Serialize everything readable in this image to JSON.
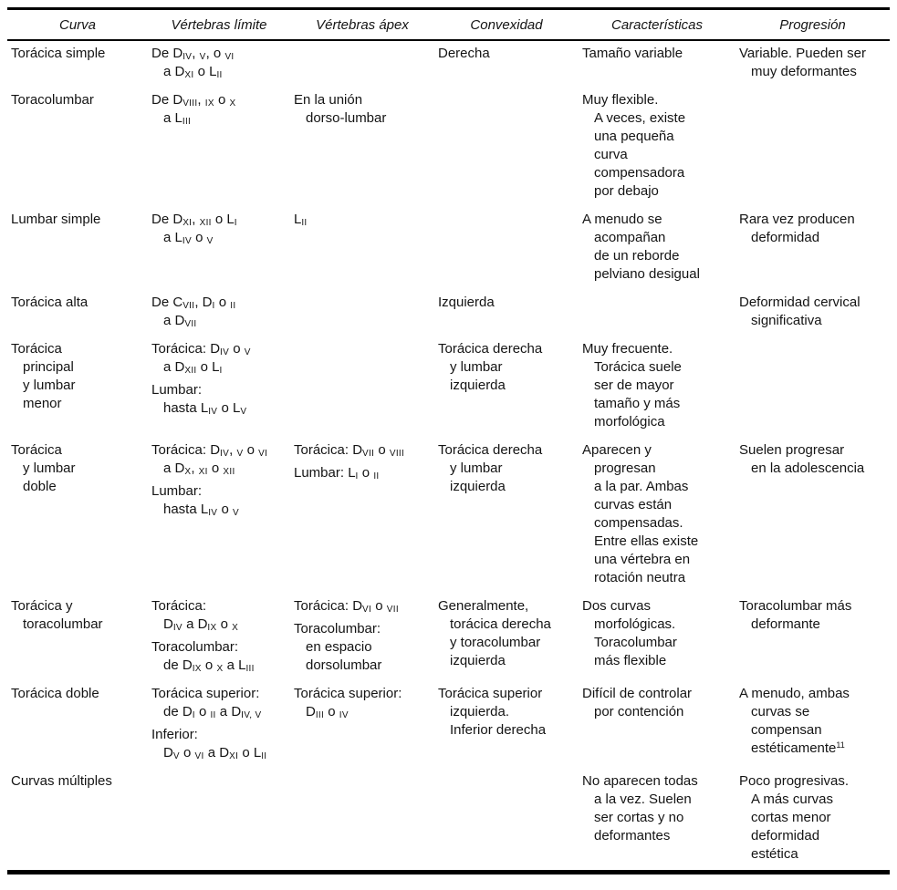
{
  "table": {
    "columns": [
      "Curva",
      "Vértebras límite",
      "Vértebras ápex",
      "Convexidad",
      "Características",
      "Progresión"
    ],
    "rows": [
      [
        [
          [
            [
              "Torácica simple"
            ]
          ]
        ],
        [
          [
            [
              "De D",
              {
                "t": "IV",
                "s": "sub"
              },
              ", ",
              {
                "t": "V",
                "s": "sub"
              },
              ", o ",
              {
                "t": "VI",
                "s": "sub"
              }
            ],
            [
              "a D",
              {
                "t": "XI",
                "s": "sub"
              },
              " o L",
              {
                "t": "II",
                "s": "sub"
              }
            ]
          ]
        ],
        [],
        [
          [
            [
              "Derecha"
            ]
          ]
        ],
        [
          [
            [
              "Tamaño variable"
            ]
          ]
        ],
        [
          [
            [
              "Variable. Pueden ser"
            ],
            [
              "muy deformantes"
            ]
          ]
        ]
      ],
      [
        [
          [
            [
              "Toracolumbar"
            ]
          ]
        ],
        [
          [
            [
              "De D",
              {
                "t": "VIII",
                "s": "sub"
              },
              ", ",
              {
                "t": "IX",
                "s": "sub"
              },
              " o ",
              {
                "t": "X",
                "s": "sub"
              }
            ],
            [
              "a L",
              {
                "t": "III",
                "s": "sub"
              }
            ]
          ]
        ],
        [
          [
            [
              "En la unión"
            ],
            [
              "dorso-lumbar"
            ]
          ]
        ],
        [],
        [
          [
            [
              "Muy flexible."
            ],
            [
              "A veces, existe"
            ],
            [
              "una pequeña"
            ],
            [
              "curva"
            ],
            [
              "compensadora"
            ],
            [
              "por debajo"
            ]
          ]
        ],
        []
      ],
      [
        [
          [
            [
              "Lumbar simple"
            ]
          ]
        ],
        [
          [
            [
              "De D",
              {
                "t": "XI",
                "s": "sub"
              },
              ", ",
              {
                "t": "XII",
                "s": "sub"
              },
              " o L",
              {
                "t": "I",
                "s": "sub"
              }
            ],
            [
              "a L",
              {
                "t": "IV",
                "s": "sub"
              },
              " o ",
              {
                "t": "V",
                "s": "sub"
              }
            ]
          ]
        ],
        [
          [
            [
              "L",
              {
                "t": "II",
                "s": "sub"
              }
            ]
          ]
        ],
        [],
        [
          [
            [
              "A menudo se"
            ],
            [
              "acompañan"
            ],
            [
              "de un reborde"
            ],
            [
              "pelviano desigual"
            ]
          ]
        ],
        [
          [
            [
              "Rara vez producen"
            ],
            [
              "deformidad"
            ]
          ]
        ]
      ],
      [
        [
          [
            [
              "Torácica alta"
            ]
          ]
        ],
        [
          [
            [
              "De C",
              {
                "t": "VII",
                "s": "sub"
              },
              ", D",
              {
                "t": "I",
                "s": "sub"
              },
              " o ",
              {
                "t": "II",
                "s": "sub"
              }
            ],
            [
              "a D",
              {
                "t": "VII",
                "s": "sub"
              }
            ]
          ]
        ],
        [],
        [
          [
            [
              "Izquierda"
            ]
          ]
        ],
        [],
        [
          [
            [
              "Deformidad cervical"
            ],
            [
              "significativa"
            ]
          ]
        ]
      ],
      [
        [
          [
            [
              "Torácica"
            ],
            [
              "principal"
            ],
            [
              "y lumbar"
            ],
            [
              "menor"
            ]
          ]
        ],
        [
          [
            [
              "Torácica: D",
              {
                "t": "IV",
                "s": "sub"
              },
              " o ",
              {
                "t": "V",
                "s": "sub"
              }
            ],
            [
              "a D",
              {
                "t": "XII",
                "s": "sub"
              },
              " o L",
              {
                "t": "I",
                "s": "sub"
              }
            ]
          ],
          [
            [
              "Lumbar:"
            ],
            [
              "hasta L",
              {
                "t": "IV",
                "s": "sub"
              },
              " o L",
              {
                "t": "V",
                "s": "sub"
              }
            ]
          ]
        ],
        [],
        [
          [
            [
              "Torácica derecha"
            ],
            [
              "y lumbar"
            ],
            [
              "izquierda"
            ]
          ]
        ],
        [
          [
            [
              "Muy frecuente."
            ],
            [
              "Torácica suele"
            ],
            [
              "ser de mayor"
            ],
            [
              "tamaño y más"
            ],
            [
              "morfológica"
            ]
          ]
        ],
        []
      ],
      [
        [
          [
            [
              "Torácica"
            ],
            [
              "y lumbar"
            ],
            [
              "doble"
            ]
          ]
        ],
        [
          [
            [
              "Torácica: D",
              {
                "t": "IV",
                "s": "sub"
              },
              ", ",
              {
                "t": "V",
                "s": "sub"
              },
              " o ",
              {
                "t": "VI",
                "s": "sub"
              }
            ],
            [
              "a D",
              {
                "t": "X",
                "s": "sub"
              },
              ", ",
              {
                "t": "XI",
                "s": "sub"
              },
              " o ",
              {
                "t": "XII",
                "s": "sub"
              }
            ]
          ],
          [
            [
              "Lumbar:"
            ],
            [
              "hasta L",
              {
                "t": "IV",
                "s": "sub"
              },
              " o ",
              {
                "t": "V",
                "s": "sub"
              }
            ]
          ]
        ],
        [
          [
            [
              "Torácica: D",
              {
                "t": "VII",
                "s": "sub"
              },
              " o ",
              {
                "t": "VIII",
                "s": "sub"
              }
            ]
          ],
          [
            [
              "Lumbar: L",
              {
                "t": "I",
                "s": "sub"
              },
              " o ",
              {
                "t": "II",
                "s": "sub"
              }
            ]
          ]
        ],
        [
          [
            [
              "Torácica derecha"
            ],
            [
              "y lumbar"
            ],
            [
              "izquierda"
            ]
          ]
        ],
        [
          [
            [
              "Aparecen y"
            ],
            [
              "progresan"
            ],
            [
              "a la par. Ambas"
            ],
            [
              "curvas están"
            ],
            [
              "compensadas."
            ],
            [
              "Entre ellas existe"
            ],
            [
              "una vértebra en"
            ],
            [
              "rotación neutra"
            ]
          ]
        ],
        [
          [
            [
              "Suelen progresar"
            ],
            [
              "en la adolescencia"
            ]
          ]
        ]
      ],
      [
        [
          [
            [
              "Torácica y"
            ],
            [
              "toracolumbar"
            ]
          ]
        ],
        [
          [
            [
              "Torácica:"
            ],
            [
              "D",
              {
                "t": "IV",
                "s": "sub"
              },
              " a D",
              {
                "t": "IX",
                "s": "sub"
              },
              " o ",
              {
                "t": "X",
                "s": "sub"
              }
            ]
          ],
          [
            [
              "Toracolumbar:"
            ],
            [
              "de D",
              {
                "t": "IX",
                "s": "sub"
              },
              " o ",
              {
                "t": "X",
                "s": "sub"
              },
              " a L",
              {
                "t": "III",
                "s": "sub"
              }
            ]
          ]
        ],
        [
          [
            [
              "Torácica: D",
              {
                "t": "VI",
                "s": "sub"
              },
              " o ",
              {
                "t": "VII",
                "s": "sub"
              }
            ]
          ],
          [
            [
              "Toracolumbar:"
            ],
            [
              "en espacio"
            ],
            [
              "dorsolumbar"
            ]
          ]
        ],
        [
          [
            [
              "Generalmente,"
            ],
            [
              "torácica derecha"
            ],
            [
              "y toracolumbar"
            ],
            [
              "izquierda"
            ]
          ]
        ],
        [
          [
            [
              "Dos curvas"
            ],
            [
              "morfológicas."
            ],
            [
              "Toracolumbar"
            ],
            [
              "más flexible"
            ]
          ]
        ],
        [
          [
            [
              "Toracolumbar más"
            ],
            [
              "deformante"
            ]
          ]
        ]
      ],
      [
        [
          [
            [
              "Torácica doble"
            ]
          ]
        ],
        [
          [
            [
              "Torácica superior:"
            ],
            [
              "de D",
              {
                "t": "I",
                "s": "sub"
              },
              " o ",
              {
                "t": "II",
                "s": "sub"
              },
              " a D",
              {
                "t": "IV, V",
                "s": "sub"
              }
            ]
          ],
          [
            [
              "Inferior:"
            ],
            [
              "D",
              {
                "t": "V",
                "s": "sub"
              },
              " o ",
              {
                "t": "VI",
                "s": "sub"
              },
              " a D",
              {
                "t": "XI",
                "s": "sub"
              },
              " o L",
              {
                "t": "II",
                "s": "sub"
              }
            ]
          ]
        ],
        [
          [
            [
              "Torácica superior:"
            ],
            [
              "D",
              {
                "t": "III",
                "s": "sub"
              },
              " o ",
              {
                "t": "IV",
                "s": "sub"
              }
            ]
          ]
        ],
        [
          [
            [
              "Torácica superior"
            ],
            [
              "izquierda."
            ],
            [
              "Inferior derecha"
            ]
          ]
        ],
        [
          [
            [
              "Difícil de controlar"
            ],
            [
              "por contención"
            ]
          ]
        ],
        [
          [
            [
              "A menudo, ambas"
            ],
            [
              "curvas se"
            ],
            [
              "compensan"
            ],
            [
              "estéticamente",
              {
                "t": "11",
                "s": "sup"
              }
            ]
          ]
        ]
      ],
      [
        [
          [
            [
              "Curvas múltiples"
            ]
          ]
        ],
        [],
        [],
        [],
        [
          [
            [
              "No aparecen todas"
            ],
            [
              "a la vez. Suelen"
            ],
            [
              "ser cortas y no"
            ],
            [
              "deformantes"
            ]
          ]
        ],
        [
          [
            [
              "Poco progresivas."
            ],
            [
              "A más curvas"
            ],
            [
              "cortas menor"
            ],
            [
              "deformidad"
            ],
            [
              "estética"
            ]
          ]
        ]
      ]
    ]
  }
}
